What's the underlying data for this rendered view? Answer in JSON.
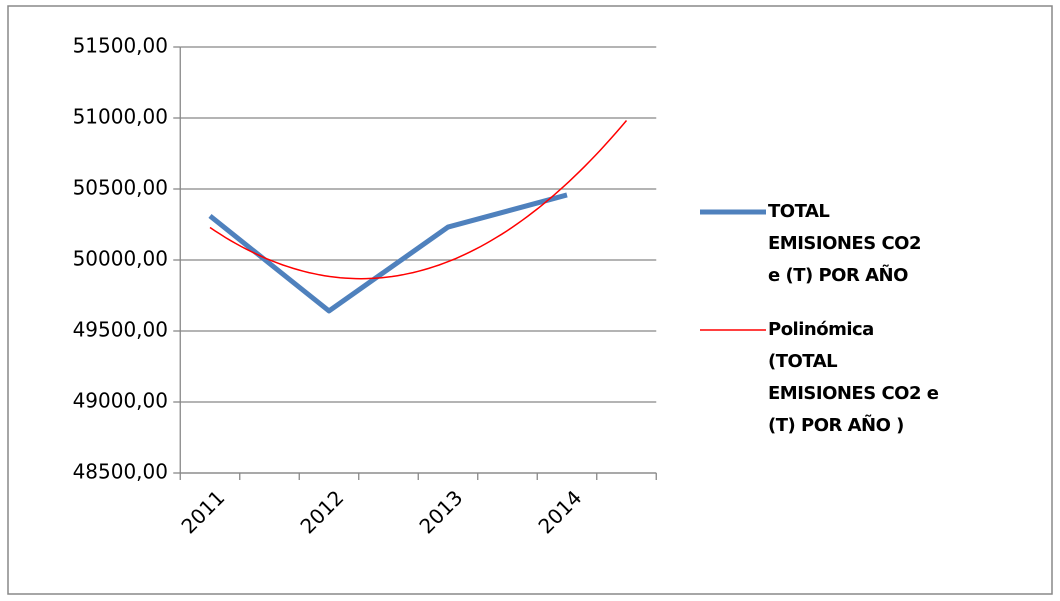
{
  "chart_data": {
    "type": "line",
    "categories": [
      "2011",
      "2012",
      "2013",
      "2014"
    ],
    "series": [
      {
        "name": "TOTAL EMISIONES CO2 e (T) POR AÑO",
        "color": "#4f81bd",
        "values": [
          50310,
          49641,
          50232,
          50458
        ]
      }
    ],
    "trendline": {
      "name": "Polinómica (TOTAL EMISIONES  CO2 e (T) POR AÑO )",
      "type": "polynomial",
      "order": 2,
      "forward": 0.5,
      "color": "#ff0000"
    },
    "ylim": [
      48500,
      51500
    ],
    "yticks": [
      {
        "value": 48500,
        "label": "48500,00"
      },
      {
        "value": 49000,
        "label": "49000,00"
      },
      {
        "value": 49500,
        "label": "49500,00"
      },
      {
        "value": 50000,
        "label": "50000,00"
      },
      {
        "value": 50500,
        "label": "50500,00"
      },
      {
        "value": 51000,
        "label": "51000,00"
      },
      {
        "value": 51500,
        "label": "51500,00"
      }
    ],
    "grid": true,
    "legend": "right"
  }
}
